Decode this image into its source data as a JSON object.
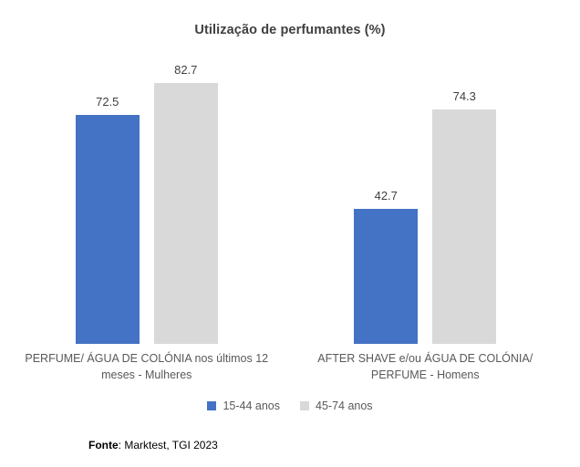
{
  "title": "Utilização de perfumantes (%)",
  "chart_data": {
    "type": "bar",
    "title": "Utilização de perfumantes (%)",
    "categories": [
      "PERFUME/ ÁGUA DE COLÓNIA nos últimos 12 meses - Mulheres",
      "AFTER SHAVE e/ou ÁGUA DE COLÓNIA/ PERFUME - Homens"
    ],
    "series": [
      {
        "name": "15-44 anos",
        "color": "#4472C4",
        "values": [
          72.5,
          42.7
        ]
      },
      {
        "name": "45-74 anos",
        "color": "#D9D9D9",
        "values": [
          82.7,
          74.3
        ]
      }
    ],
    "ylim": [
      0,
      100
    ],
    "grid": false,
    "axis_lines": false,
    "data_labels": true,
    "legend_position": "bottom"
  },
  "footer": {
    "source_bold": "Fonte",
    "source_rest": ": Marktest, TGI 2023"
  }
}
